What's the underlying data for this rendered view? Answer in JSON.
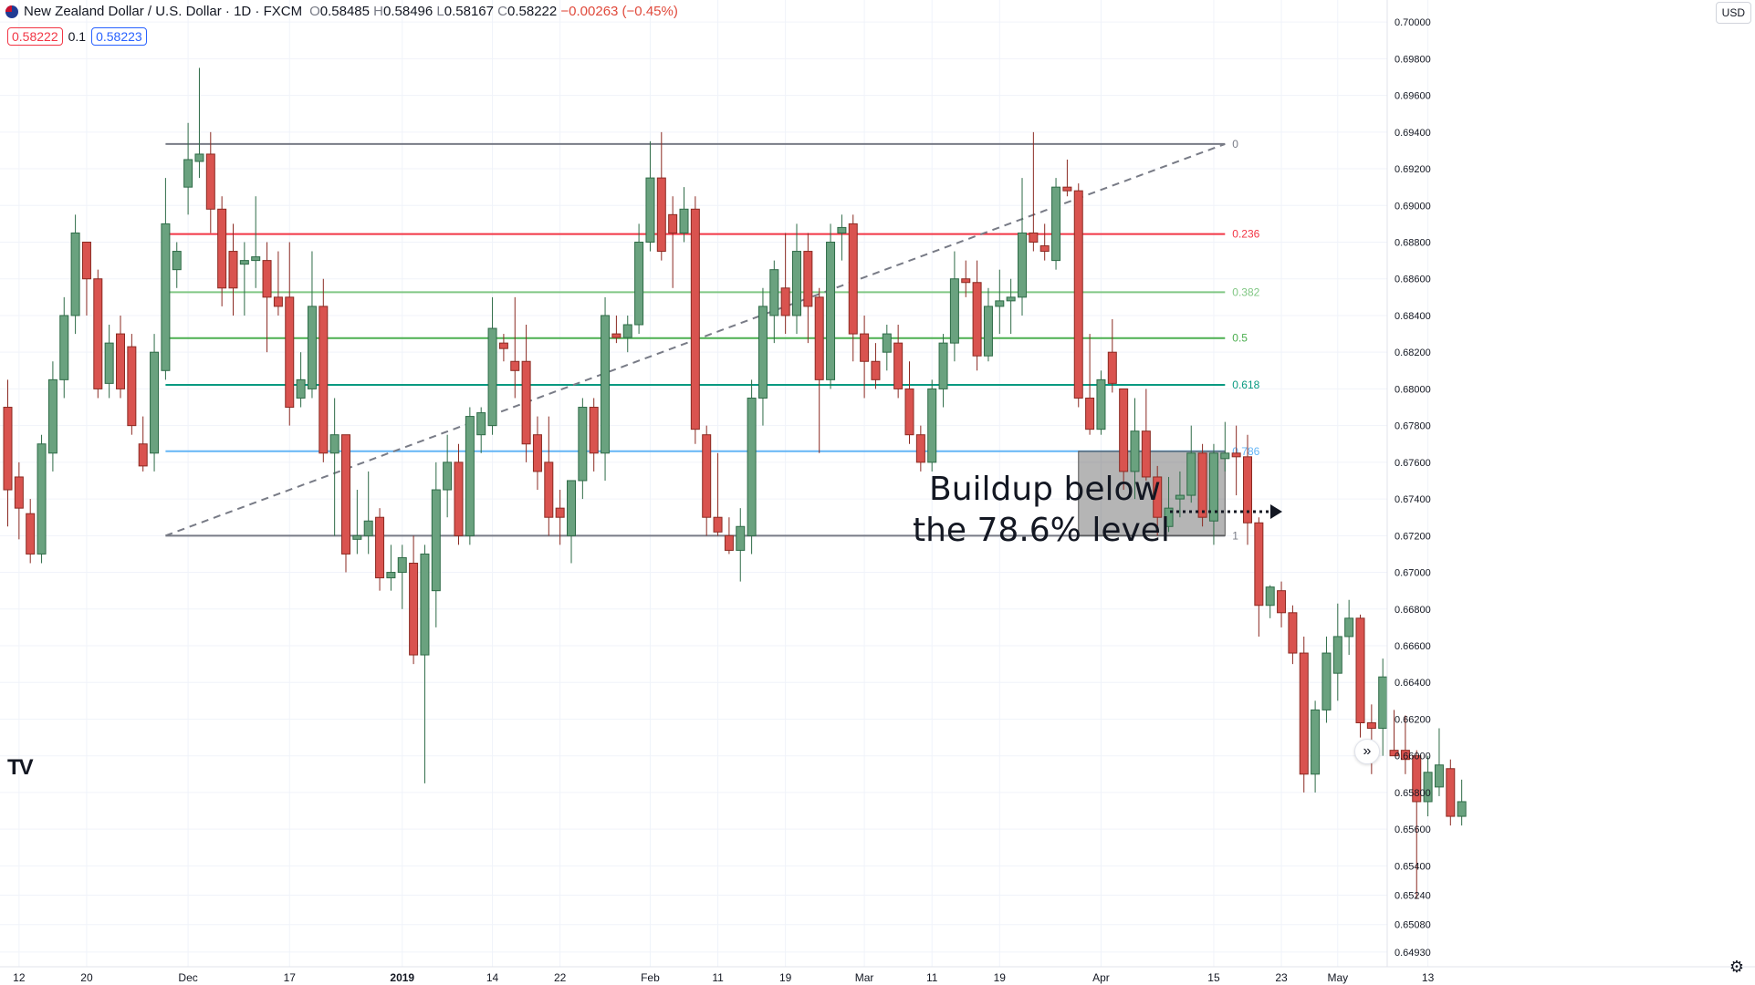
{
  "header": {
    "symbol": "New Zealand Dollar / U.S. Dollar · 1D · FXCM",
    "open_label": "O",
    "open": "0.58485",
    "high_label": "H",
    "high": "0.58496",
    "low_label": "L",
    "low": "0.58167",
    "close_label": "C",
    "close": "0.58222",
    "change": "−0.00263 (−0.45%)",
    "sell_price": "0.58222",
    "spread": "0.1",
    "buy_price": "0.58223",
    "currency": "USD"
  },
  "icons": {
    "flag": "nzd-usd-flag-icon",
    "logo": "tradingview-logo-icon",
    "expand": "double-chevron-right-icon",
    "settings": "gear-icon"
  },
  "chart_data": {
    "type": "candlestick",
    "title": "New Zealand Dollar / U.S. Dollar · 1D · FXCM",
    "ylim": [
      0.6485,
      0.7012
    ],
    "y_ticks": [
      0.7,
      0.698,
      0.696,
      0.694,
      0.692,
      0.69,
      0.688,
      0.686,
      0.684,
      0.682,
      0.68,
      0.678,
      0.676,
      0.674,
      0.672,
      0.67,
      0.668,
      0.666,
      0.664,
      0.662,
      0.66,
      0.658,
      0.656,
      0.654,
      0.6524,
      0.6508,
      0.6493
    ],
    "x_ticks": [
      {
        "label": "12",
        "bar": 1
      },
      {
        "label": "20",
        "bar": 7
      },
      {
        "label": "Dec",
        "bar": 16
      },
      {
        "label": "17",
        "bar": 25
      },
      {
        "label": "2019",
        "bar": 35
      },
      {
        "label": "14",
        "bar": 43
      },
      {
        "label": "22",
        "bar": 49
      },
      {
        "label": "Feb",
        "bar": 57
      },
      {
        "label": "11",
        "bar": 63
      },
      {
        "label": "19",
        "bar": 69
      },
      {
        "label": "Mar",
        "bar": 76
      },
      {
        "label": "11",
        "bar": 82
      },
      {
        "label": "19",
        "bar": 88
      },
      {
        "label": "Apr",
        "bar": 97
      },
      {
        "label": "15",
        "bar": 107
      },
      {
        "label": "23",
        "bar": 113
      },
      {
        "label": "May",
        "bar": 118
      },
      {
        "label": "13",
        "bar": 126
      }
    ],
    "candles": [
      {
        "o": 0.679,
        "h": 0.6805,
        "l": 0.6725,
        "c": 0.6745
      },
      {
        "o": 0.6752,
        "h": 0.676,
        "l": 0.6718,
        "c": 0.6735
      },
      {
        "o": 0.6732,
        "h": 0.674,
        "l": 0.6705,
        "c": 0.671
      },
      {
        "o": 0.671,
        "h": 0.6775,
        "l": 0.6705,
        "c": 0.677
      },
      {
        "o": 0.6765,
        "h": 0.6815,
        "l": 0.6755,
        "c": 0.6805
      },
      {
        "o": 0.6805,
        "h": 0.685,
        "l": 0.6795,
        "c": 0.684
      },
      {
        "o": 0.684,
        "h": 0.6895,
        "l": 0.683,
        "c": 0.6885
      },
      {
        "o": 0.688,
        "h": 0.688,
        "l": 0.684,
        "c": 0.686
      },
      {
        "o": 0.686,
        "h": 0.6865,
        "l": 0.6795,
        "c": 0.68
      },
      {
        "o": 0.6803,
        "h": 0.6835,
        "l": 0.6795,
        "c": 0.6825
      },
      {
        "o": 0.683,
        "h": 0.684,
        "l": 0.6795,
        "c": 0.68
      },
      {
        "o": 0.6823,
        "h": 0.683,
        "l": 0.6775,
        "c": 0.678
      },
      {
        "o": 0.677,
        "h": 0.6785,
        "l": 0.6755,
        "c": 0.6758
      },
      {
        "o": 0.6765,
        "h": 0.683,
        "l": 0.6755,
        "c": 0.682
      },
      {
        "o": 0.681,
        "h": 0.6915,
        "l": 0.6805,
        "c": 0.689
      },
      {
        "o": 0.6865,
        "h": 0.688,
        "l": 0.6855,
        "c": 0.6875
      },
      {
        "o": 0.691,
        "h": 0.6945,
        "l": 0.6895,
        "c": 0.6925
      },
      {
        "o": 0.6924,
        "h": 0.6975,
        "l": 0.6915,
        "c": 0.6928
      },
      {
        "o": 0.6928,
        "h": 0.694,
        "l": 0.6885,
        "c": 0.6898
      },
      {
        "o": 0.6898,
        "h": 0.6905,
        "l": 0.6845,
        "c": 0.6855
      },
      {
        "o": 0.6875,
        "h": 0.689,
        "l": 0.684,
        "c": 0.6855
      },
      {
        "o": 0.6868,
        "h": 0.688,
        "l": 0.684,
        "c": 0.687
      },
      {
        "o": 0.687,
        "h": 0.6905,
        "l": 0.6855,
        "c": 0.6872
      },
      {
        "o": 0.687,
        "h": 0.688,
        "l": 0.682,
        "c": 0.685
      },
      {
        "o": 0.685,
        "h": 0.6875,
        "l": 0.684,
        "c": 0.6845
      },
      {
        "o": 0.685,
        "h": 0.688,
        "l": 0.678,
        "c": 0.679
      },
      {
        "o": 0.6795,
        "h": 0.682,
        "l": 0.679,
        "c": 0.6805
      },
      {
        "o": 0.68,
        "h": 0.6875,
        "l": 0.6795,
        "c": 0.6845
      },
      {
        "o": 0.6845,
        "h": 0.686,
        "l": 0.676,
        "c": 0.6765
      },
      {
        "o": 0.6765,
        "h": 0.6795,
        "l": 0.672,
        "c": 0.6775
      },
      {
        "o": 0.6775,
        "h": 0.6775,
        "l": 0.67,
        "c": 0.671
      },
      {
        "o": 0.6718,
        "h": 0.6745,
        "l": 0.671,
        "c": 0.672
      },
      {
        "o": 0.672,
        "h": 0.6755,
        "l": 0.671,
        "c": 0.6728
      },
      {
        "o": 0.673,
        "h": 0.6735,
        "l": 0.669,
        "c": 0.6697
      },
      {
        "o": 0.6697,
        "h": 0.6715,
        "l": 0.669,
        "c": 0.67
      },
      {
        "o": 0.67,
        "h": 0.6715,
        "l": 0.668,
        "c": 0.6708
      },
      {
        "o": 0.6705,
        "h": 0.672,
        "l": 0.665,
        "c": 0.6655
      },
      {
        "o": 0.6655,
        "h": 0.6715,
        "l": 0.6585,
        "c": 0.671
      },
      {
        "o": 0.669,
        "h": 0.676,
        "l": 0.667,
        "c": 0.6745
      },
      {
        "o": 0.6745,
        "h": 0.6775,
        "l": 0.673,
        "c": 0.676
      },
      {
        "o": 0.676,
        "h": 0.677,
        "l": 0.6715,
        "c": 0.672
      },
      {
        "o": 0.672,
        "h": 0.679,
        "l": 0.6715,
        "c": 0.6785
      },
      {
        "o": 0.6775,
        "h": 0.679,
        "l": 0.6765,
        "c": 0.6787
      },
      {
        "o": 0.678,
        "h": 0.685,
        "l": 0.6775,
        "c": 0.6833
      },
      {
        "o": 0.6825,
        "h": 0.683,
        "l": 0.6815,
        "c": 0.6822
      },
      {
        "o": 0.6815,
        "h": 0.685,
        "l": 0.6795,
        "c": 0.681
      },
      {
        "o": 0.6815,
        "h": 0.6835,
        "l": 0.676,
        "c": 0.677
      },
      {
        "o": 0.6775,
        "h": 0.6785,
        "l": 0.6745,
        "c": 0.6755
      },
      {
        "o": 0.676,
        "h": 0.6785,
        "l": 0.672,
        "c": 0.673
      },
      {
        "o": 0.6735,
        "h": 0.6745,
        "l": 0.6715,
        "c": 0.673
      },
      {
        "o": 0.672,
        "h": 0.675,
        "l": 0.6705,
        "c": 0.675
      },
      {
        "o": 0.675,
        "h": 0.6795,
        "l": 0.674,
        "c": 0.679
      },
      {
        "o": 0.679,
        "h": 0.6795,
        "l": 0.6755,
        "c": 0.6765
      },
      {
        "o": 0.6765,
        "h": 0.685,
        "l": 0.675,
        "c": 0.684
      },
      {
        "o": 0.683,
        "h": 0.684,
        "l": 0.6825,
        "c": 0.6828
      },
      {
        "o": 0.6828,
        "h": 0.684,
        "l": 0.682,
        "c": 0.6835
      },
      {
        "o": 0.6835,
        "h": 0.689,
        "l": 0.683,
        "c": 0.688
      },
      {
        "o": 0.688,
        "h": 0.6935,
        "l": 0.6875,
        "c": 0.6915
      },
      {
        "o": 0.6915,
        "h": 0.694,
        "l": 0.687,
        "c": 0.6875
      },
      {
        "o": 0.6895,
        "h": 0.6905,
        "l": 0.6855,
        "c": 0.6885
      },
      {
        "o": 0.6885,
        "h": 0.691,
        "l": 0.688,
        "c": 0.6898
      },
      {
        "o": 0.6898,
        "h": 0.6905,
        "l": 0.677,
        "c": 0.6778
      },
      {
        "o": 0.6775,
        "h": 0.678,
        "l": 0.672,
        "c": 0.673
      },
      {
        "o": 0.673,
        "h": 0.6765,
        "l": 0.672,
        "c": 0.6722
      },
      {
        "o": 0.672,
        "h": 0.673,
        "l": 0.671,
        "c": 0.6712
      },
      {
        "o": 0.6712,
        "h": 0.6735,
        "l": 0.6695,
        "c": 0.6725
      },
      {
        "o": 0.672,
        "h": 0.6805,
        "l": 0.671,
        "c": 0.6795
      },
      {
        "o": 0.6795,
        "h": 0.6855,
        "l": 0.678,
        "c": 0.6845
      },
      {
        "o": 0.684,
        "h": 0.687,
        "l": 0.6825,
        "c": 0.6865
      },
      {
        "o": 0.6855,
        "h": 0.6885,
        "l": 0.683,
        "c": 0.684
      },
      {
        "o": 0.684,
        "h": 0.689,
        "l": 0.683,
        "c": 0.6875
      },
      {
        "o": 0.6875,
        "h": 0.6885,
        "l": 0.6825,
        "c": 0.6845
      },
      {
        "o": 0.685,
        "h": 0.6855,
        "l": 0.6765,
        "c": 0.6805
      },
      {
        "o": 0.6805,
        "h": 0.689,
        "l": 0.68,
        "c": 0.688
      },
      {
        "o": 0.6885,
        "h": 0.6895,
        "l": 0.687,
        "c": 0.6888
      },
      {
        "o": 0.689,
        "h": 0.6895,
        "l": 0.6815,
        "c": 0.683
      },
      {
        "o": 0.683,
        "h": 0.684,
        "l": 0.6795,
        "c": 0.6815
      },
      {
        "o": 0.6815,
        "h": 0.6825,
        "l": 0.68,
        "c": 0.6805
      },
      {
        "o": 0.682,
        "h": 0.6835,
        "l": 0.681,
        "c": 0.683
      },
      {
        "o": 0.6825,
        "h": 0.6835,
        "l": 0.6795,
        "c": 0.68
      },
      {
        "o": 0.68,
        "h": 0.6815,
        "l": 0.677,
        "c": 0.6775
      },
      {
        "o": 0.6775,
        "h": 0.678,
        "l": 0.6755,
        "c": 0.676
      },
      {
        "o": 0.676,
        "h": 0.6805,
        "l": 0.6755,
        "c": 0.68
      },
      {
        "o": 0.68,
        "h": 0.683,
        "l": 0.679,
        "c": 0.6825
      },
      {
        "o": 0.6825,
        "h": 0.6875,
        "l": 0.6815,
        "c": 0.686
      },
      {
        "o": 0.686,
        "h": 0.687,
        "l": 0.685,
        "c": 0.6858
      },
      {
        "o": 0.6858,
        "h": 0.687,
        "l": 0.681,
        "c": 0.6818
      },
      {
        "o": 0.6818,
        "h": 0.6855,
        "l": 0.6815,
        "c": 0.6845
      },
      {
        "o": 0.6845,
        "h": 0.6865,
        "l": 0.683,
        "c": 0.6848
      },
      {
        "o": 0.6848,
        "h": 0.686,
        "l": 0.683,
        "c": 0.685
      },
      {
        "o": 0.685,
        "h": 0.6915,
        "l": 0.684,
        "c": 0.6885
      },
      {
        "o": 0.6885,
        "h": 0.694,
        "l": 0.6875,
        "c": 0.688
      },
      {
        "o": 0.6878,
        "h": 0.689,
        "l": 0.687,
        "c": 0.6875
      },
      {
        "o": 0.687,
        "h": 0.6915,
        "l": 0.6865,
        "c": 0.691
      },
      {
        "o": 0.691,
        "h": 0.6925,
        "l": 0.6905,
        "c": 0.6908
      },
      {
        "o": 0.6908,
        "h": 0.6912,
        "l": 0.679,
        "c": 0.6795
      },
      {
        "o": 0.6795,
        "h": 0.683,
        "l": 0.6775,
        "c": 0.6778
      },
      {
        "o": 0.6778,
        "h": 0.681,
        "l": 0.6775,
        "c": 0.6805
      },
      {
        "o": 0.682,
        "h": 0.6838,
        "l": 0.6798,
        "c": 0.6803
      },
      {
        "o": 0.68,
        "h": 0.68,
        "l": 0.6745,
        "c": 0.6755
      },
      {
        "o": 0.6755,
        "h": 0.6795,
        "l": 0.674,
        "c": 0.6777
      },
      {
        "o": 0.6777,
        "h": 0.68,
        "l": 0.675,
        "c": 0.6752
      },
      {
        "o": 0.6752,
        "h": 0.6758,
        "l": 0.672,
        "c": 0.673
      },
      {
        "o": 0.6725,
        "h": 0.6752,
        "l": 0.6722,
        "c": 0.6735
      },
      {
        "o": 0.674,
        "h": 0.6755,
        "l": 0.673,
        "c": 0.6742
      },
      {
        "o": 0.6742,
        "h": 0.678,
        "l": 0.6738,
        "c": 0.6765
      },
      {
        "o": 0.6765,
        "h": 0.677,
        "l": 0.6725,
        "c": 0.673
      },
      {
        "o": 0.6728,
        "h": 0.677,
        "l": 0.6715,
        "c": 0.6765
      },
      {
        "o": 0.6762,
        "h": 0.6782,
        "l": 0.6755,
        "c": 0.6765
      },
      {
        "o": 0.6765,
        "h": 0.678,
        "l": 0.6742,
        "c": 0.6763
      },
      {
        "o": 0.6763,
        "h": 0.6775,
        "l": 0.6715,
        "c": 0.6727
      },
      {
        "o": 0.6727,
        "h": 0.673,
        "l": 0.6665,
        "c": 0.6682
      },
      {
        "o": 0.6682,
        "h": 0.6693,
        "l": 0.6675,
        "c": 0.6692
      },
      {
        "o": 0.669,
        "h": 0.6695,
        "l": 0.667,
        "c": 0.6678
      },
      {
        "o": 0.6678,
        "h": 0.6682,
        "l": 0.665,
        "c": 0.6656
      },
      {
        "o": 0.6656,
        "h": 0.6665,
        "l": 0.658,
        "c": 0.659
      },
      {
        "o": 0.659,
        "h": 0.663,
        "l": 0.658,
        "c": 0.6625
      },
      {
        "o": 0.6625,
        "h": 0.6665,
        "l": 0.6618,
        "c": 0.6656
      },
      {
        "o": 0.6645,
        "h": 0.6683,
        "l": 0.663,
        "c": 0.6665
      },
      {
        "o": 0.6665,
        "h": 0.6685,
        "l": 0.6655,
        "c": 0.6675
      },
      {
        "o": 0.6675,
        "h": 0.6677,
        "l": 0.661,
        "c": 0.6618
      },
      {
        "o": 0.6618,
        "h": 0.6628,
        "l": 0.659,
        "c": 0.6615
      },
      {
        "o": 0.6615,
        "h": 0.6653,
        "l": 0.66,
        "c": 0.6643
      },
      {
        "o": 0.6603,
        "h": 0.6625,
        "l": 0.66,
        "c": 0.66
      },
      {
        "o": 0.6603,
        "h": 0.6622,
        "l": 0.659,
        "c": 0.6598
      },
      {
        "o": 0.66,
        "h": 0.6603,
        "l": 0.6522,
        "c": 0.6575
      },
      {
        "o": 0.6575,
        "h": 0.66,
        "l": 0.6567,
        "c": 0.6591
      },
      {
        "o": 0.6583,
        "h": 0.6615,
        "l": 0.6578,
        "c": 0.6595
      },
      {
        "o": 0.6593,
        "h": 0.6598,
        "l": 0.6562,
        "c": 0.6567
      },
      {
        "o": 0.6567,
        "h": 0.6587,
        "l": 0.6562,
        "c": 0.6575
      }
    ],
    "fibonacci": {
      "start_bar": 14,
      "end_bar": 108,
      "levels": [
        {
          "label": "0",
          "value": 0.69335,
          "color": "#787b86"
        },
        {
          "label": "0.236",
          "value": 0.68844,
          "color": "#f23645"
        },
        {
          "label": "0.382",
          "value": 0.68527,
          "color": "#81c784"
        },
        {
          "label": "0.5",
          "value": 0.68277,
          "color": "#4caf50"
        },
        {
          "label": "0.618",
          "value": 0.68022,
          "color": "#089981"
        },
        {
          "label": "0.786",
          "value": 0.6766,
          "color": "#64b5f6"
        },
        {
          "label": "1",
          "value": 0.672,
          "color": "#787b86"
        }
      ]
    },
    "trendline": {
      "bar1": 14,
      "v1": 0.672,
      "bar2": 108,
      "v2": 0.69335
    },
    "highlight_box": {
      "bar1": 95,
      "bar2": 108,
      "top": 0.6766,
      "bottom": 0.672
    },
    "annotation": {
      "line1": "Buildup below",
      "line2": "the 78.6% level",
      "arrow": "dotted-arrow-right"
    }
  }
}
